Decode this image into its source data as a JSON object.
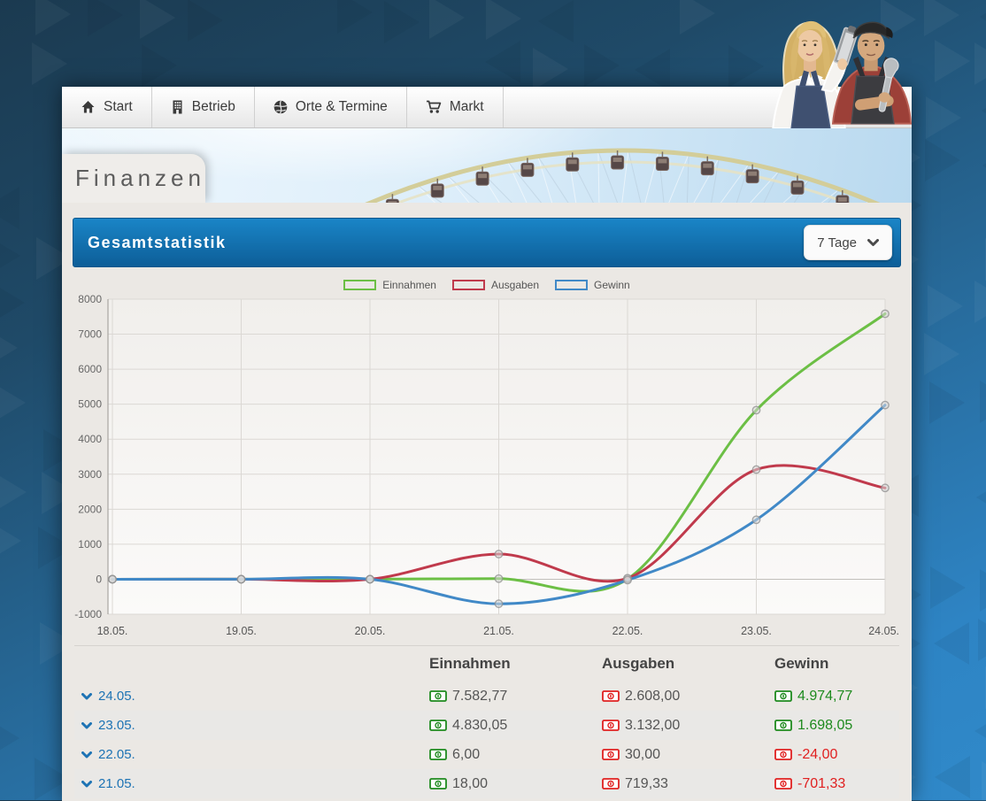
{
  "page": {
    "title": "Finanzen"
  },
  "nav": {
    "items": [
      {
        "id": "start",
        "label": "Start",
        "icon": "home-icon"
      },
      {
        "id": "betrieb",
        "label": "Betrieb",
        "icon": "building-icon"
      },
      {
        "id": "orte-termine",
        "label": "Orte & Termine",
        "icon": "globe-icon"
      },
      {
        "id": "markt",
        "label": "Markt",
        "icon": "cart-icon"
      }
    ]
  },
  "stats_panel": {
    "title": "Gesamtstatistik",
    "range_dropdown": {
      "value": "7 Tage",
      "icon": "chevron-down-icon"
    }
  },
  "chart_data": {
    "type": "line",
    "x": [
      "18.05.",
      "19.05.",
      "20.05.",
      "21.05.",
      "22.05.",
      "23.05.",
      "24.05."
    ],
    "ylim": [
      -1000,
      8000
    ],
    "ytick_step": 1000,
    "grid": true,
    "legend_position": "top",
    "series": [
      {
        "name": "Einnahmen",
        "color": "#6cbf45",
        "values": [
          0,
          0,
          0,
          18,
          6,
          4830.05,
          7582.77
        ]
      },
      {
        "name": "Ausgaben",
        "color": "#c03a4c",
        "values": [
          0,
          0,
          0,
          719.33,
          30,
          3132.0,
          2608.0
        ]
      },
      {
        "name": "Gewinn",
        "color": "#4189c7",
        "values": [
          0,
          0,
          0,
          -701.33,
          -24,
          1698.05,
          4974.77
        ]
      }
    ]
  },
  "table": {
    "columns": [
      "Einnahmen",
      "Ausgaben",
      "Gewinn"
    ],
    "rows": [
      {
        "date": "24.05.",
        "einnahmen": "7.582,77",
        "ausgaben": "2.608,00",
        "gewinn": "4.974,77",
        "gewinn_sign": "positive"
      },
      {
        "date": "23.05.",
        "einnahmen": "4.830,05",
        "ausgaben": "3.132,00",
        "gewinn": "1.698,05",
        "gewinn_sign": "positive"
      },
      {
        "date": "22.05.",
        "einnahmen": "6,00",
        "ausgaben": "30,00",
        "gewinn": "-24,00",
        "gewinn_sign": "negative"
      },
      {
        "date": "21.05.",
        "einnahmen": "18,00",
        "ausgaben": "719,33",
        "gewinn": "-701,33",
        "gewinn_sign": "negative"
      }
    ]
  },
  "colors": {
    "header_blue_top": "#1a85c7",
    "header_blue_bottom": "#0d5e98",
    "link_blue": "#1d73b4",
    "positive_green": "#1e8a1e",
    "negative_red": "#e02020"
  }
}
